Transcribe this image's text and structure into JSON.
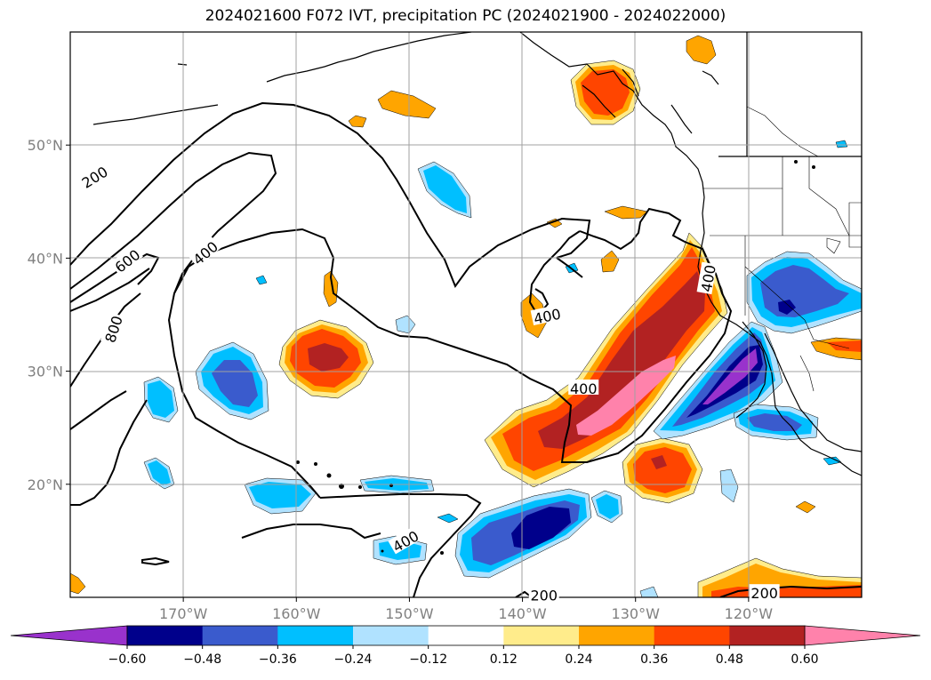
{
  "title": "2024021600 F072 IVT, precipitation PC (2024021900 - 2024022000)",
  "map": {
    "lon_range": [
      -180,
      -110
    ],
    "lat_range": [
      10,
      60
    ],
    "lon_ticks": [
      {
        "value": -170,
        "label": "170°W"
      },
      {
        "value": -160,
        "label": "160°W"
      },
      {
        "value": -150,
        "label": "150°W"
      },
      {
        "value": -140,
        "label": "140°W"
      },
      {
        "value": -130,
        "label": "130°W"
      },
      {
        "value": -120,
        "label": "120°W"
      }
    ],
    "lat_ticks": [
      {
        "value": 20,
        "label": "20°N"
      },
      {
        "value": 30,
        "label": "30°N"
      },
      {
        "value": 40,
        "label": "40°N"
      },
      {
        "value": 50,
        "label": "50°N"
      }
    ],
    "grid": true
  },
  "contour_labels": [
    {
      "text": "200",
      "lon": -177.8,
      "lat": 47.1,
      "rot": -32
    },
    {
      "text": "600",
      "lon": -174.9,
      "lat": 39.7,
      "rot": -38
    },
    {
      "text": "800",
      "lon": -176.1,
      "lat": 33.7,
      "rot": -72
    },
    {
      "text": "400",
      "lon": -168.0,
      "lat": 40.4,
      "rot": -40
    },
    {
      "text": "400",
      "lon": -137.8,
      "lat": 34.8,
      "rot": -12
    },
    {
      "text": "400",
      "lon": -134.6,
      "lat": 28.4,
      "rot": 0
    },
    {
      "text": "400",
      "lon": -150.3,
      "lat": 14.9,
      "rot": -30
    },
    {
      "text": "200",
      "lon": -138.1,
      "lat": 10.1,
      "rot": 0
    },
    {
      "text": "200",
      "lon": -118.6,
      "lat": 10.3,
      "rot": 0
    },
    {
      "text": "400",
      "lon": -123.5,
      "lat": 38.2,
      "rot": -80
    }
  ],
  "colorbar": {
    "levels": [
      -0.6,
      -0.48,
      -0.36,
      -0.24,
      -0.12,
      0.12,
      0.24,
      0.36,
      0.48,
      0.6
    ],
    "tick_labels": [
      "−0.60",
      "−0.48",
      "−0.36",
      "−0.24",
      "−0.12",
      "0.12",
      "0.24",
      "0.36",
      "0.48",
      "0.60"
    ],
    "colors": [
      "#9932cc",
      "#00008b",
      "#3a5bcd",
      "#00bfff",
      "#b0e2ff",
      "#ffffff",
      "#ffec8b",
      "#ffa500",
      "#ff4500",
      "#b22222",
      "#ff82ab"
    ],
    "extend": "both"
  }
}
